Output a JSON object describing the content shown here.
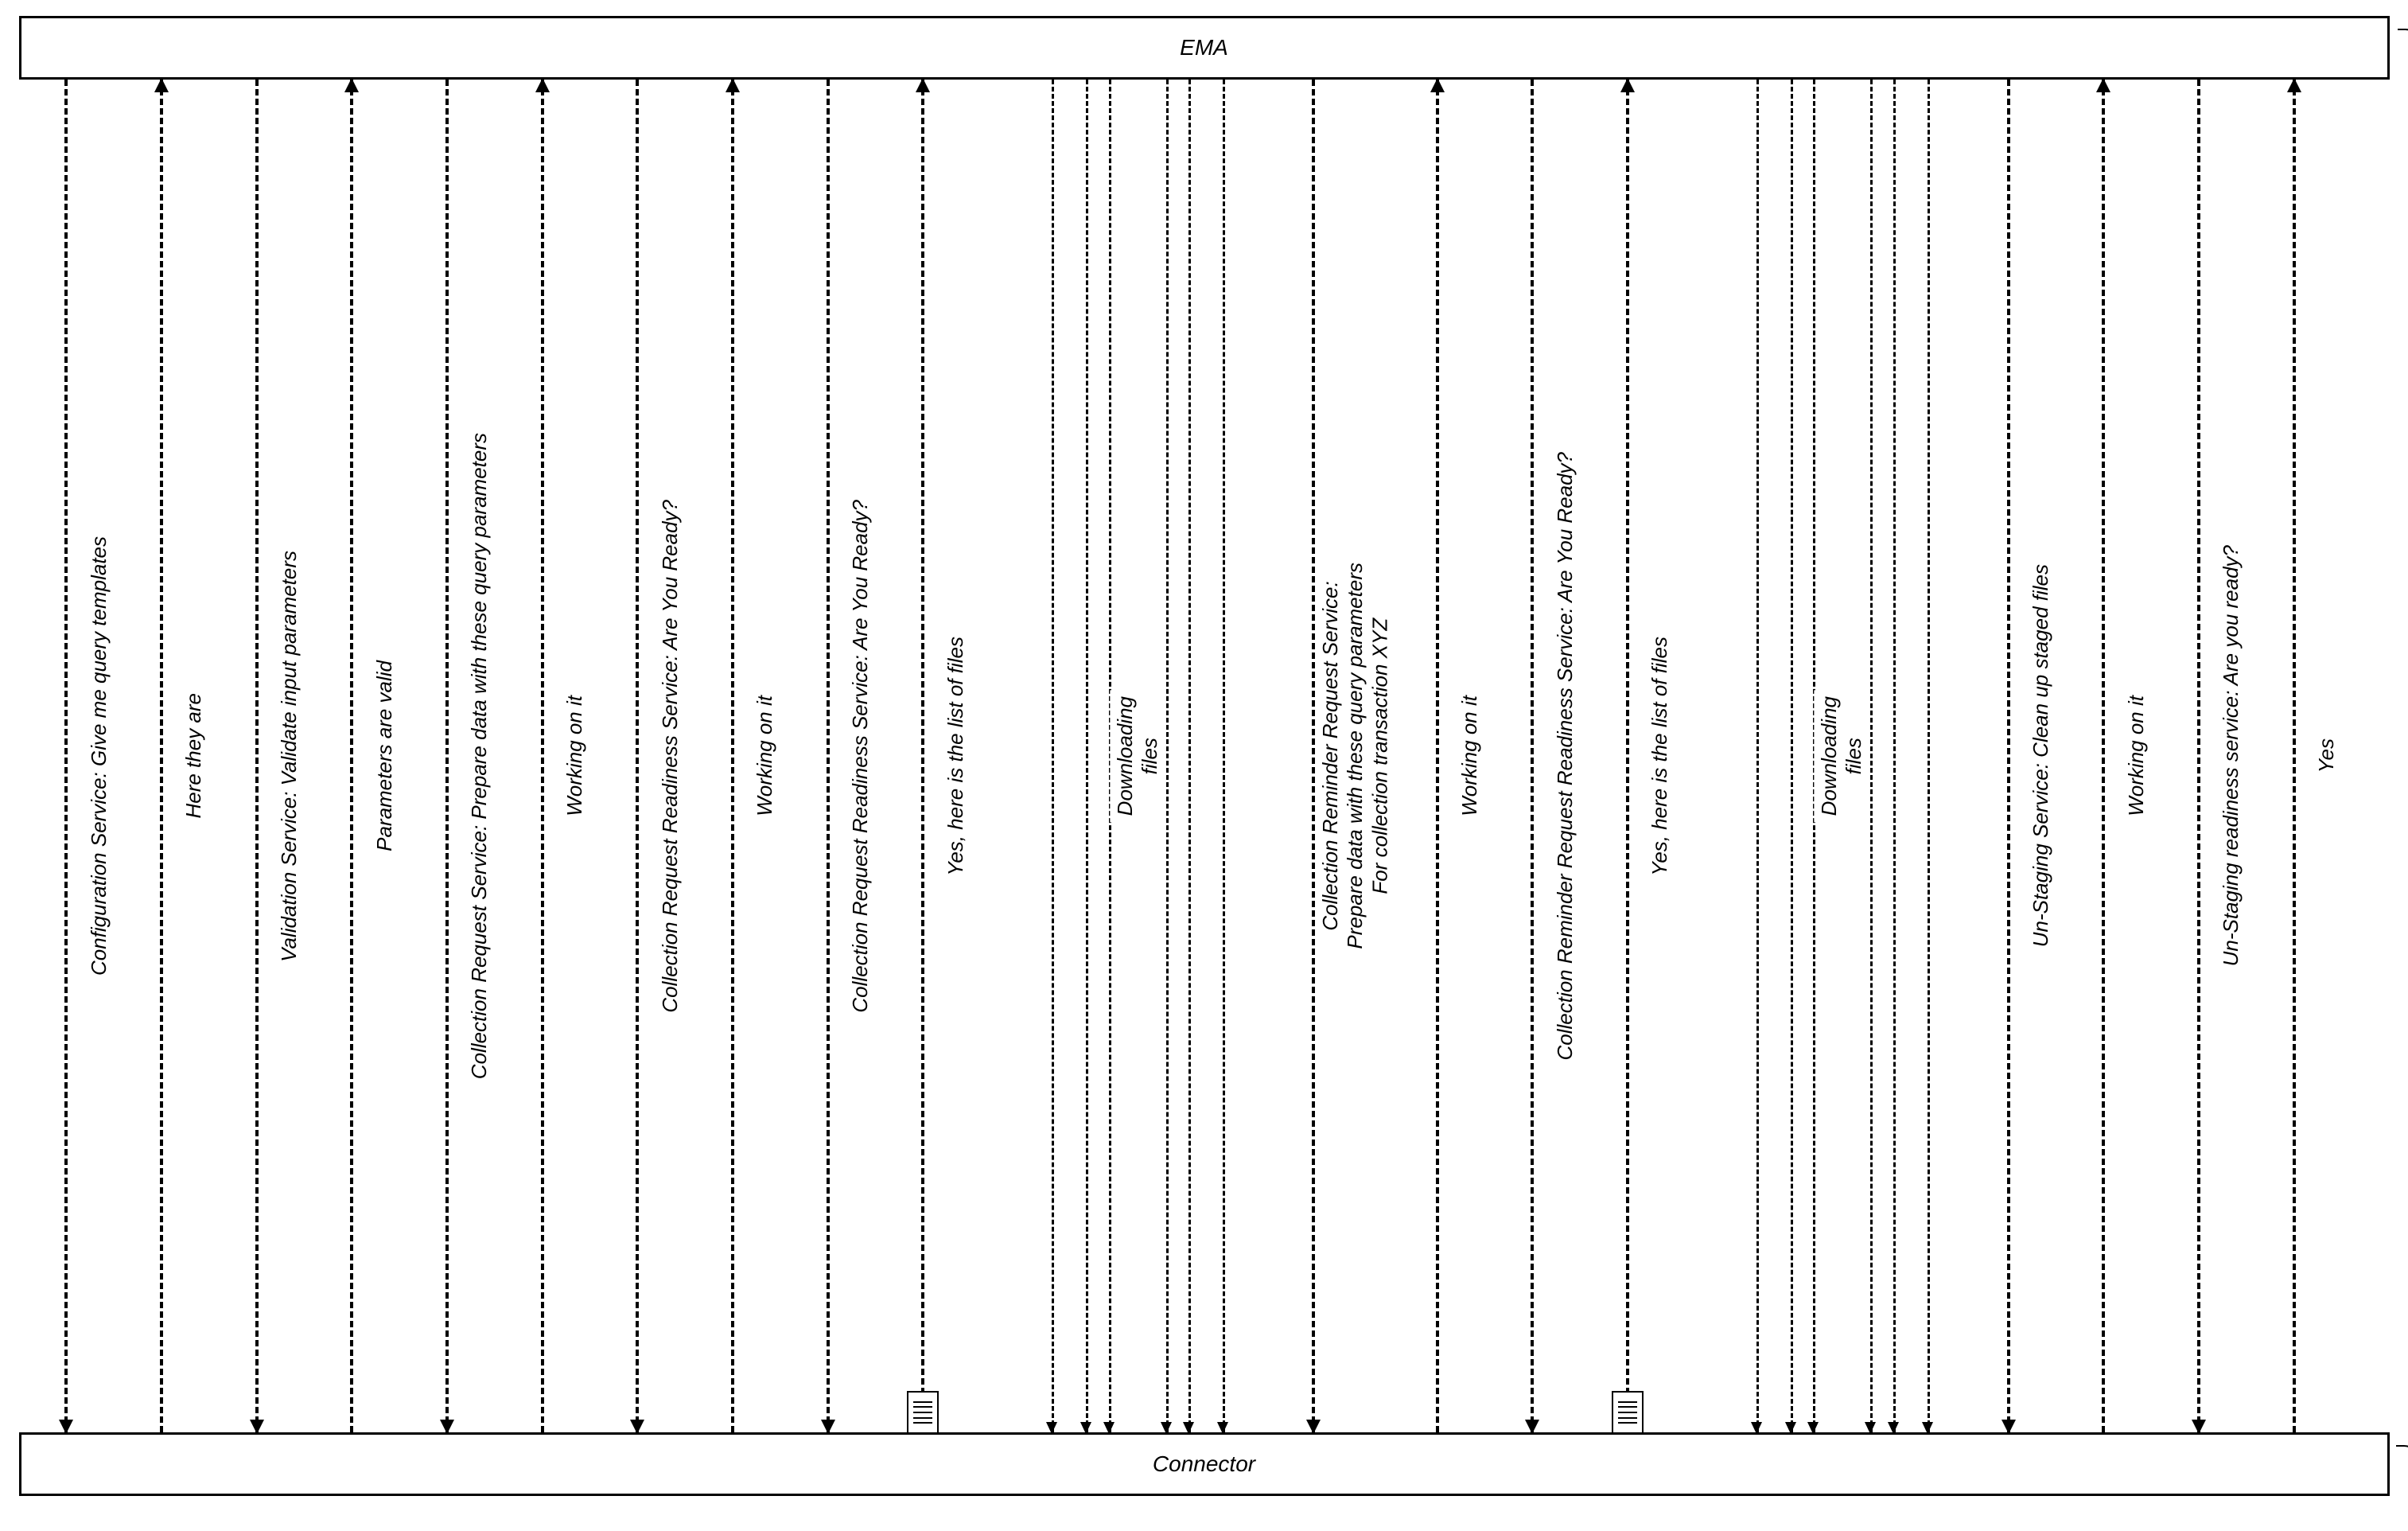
{
  "top_box": {
    "label": "EMA",
    "ref": "11"
  },
  "bottom_box": {
    "label": "Connector",
    "ref": "13"
  },
  "colors": {
    "stroke": "#000000",
    "background": "#ffffff"
  },
  "font": {
    "style": "italic",
    "size_pt": 26
  },
  "messages": [
    {
      "dir": "down",
      "text": "Configuration Service: Give me query templates"
    },
    {
      "dir": "up",
      "text": "Here they are"
    },
    {
      "dir": "down",
      "text": "Validation Service: Validate input parameters"
    },
    {
      "dir": "up",
      "text": "Parameters are valid"
    },
    {
      "dir": "down",
      "text": "Collection Request Service: Prepare data with these query parameters"
    },
    {
      "dir": "up",
      "text": "Working on it"
    },
    {
      "dir": "down",
      "text": "Collection Request Readiness Service: Are You Ready?"
    },
    {
      "dir": "up",
      "text": "Working on it"
    },
    {
      "dir": "down",
      "text": "Collection Request Readiness Service: Are You Ready?"
    },
    {
      "dir": "up",
      "text": "Yes, here is the list of files",
      "with_file_icon": true
    },
    {
      "dir": "download",
      "text": "Downloading\nfiles"
    },
    {
      "dir": "down",
      "text": "Collection Reminder Request Service:\nPrepare data with these query parameters\nFor collection transaction XYZ",
      "multiline": true,
      "wide": true
    },
    {
      "dir": "up",
      "text": "Working on it"
    },
    {
      "dir": "down",
      "text": "Collection Reminder Request Readiness Service: Are You Ready?"
    },
    {
      "dir": "up",
      "text": "Yes, here is the list of files",
      "with_file_icon": true
    },
    {
      "dir": "download",
      "text": "Downloading\nfiles"
    },
    {
      "dir": "down",
      "text": "Un-Staging Service: Clean up staged files"
    },
    {
      "dir": "up",
      "text": "Working on it"
    },
    {
      "dir": "down",
      "text": "Un-Staging readiness service: Are you ready?"
    },
    {
      "dir": "up",
      "text": "Yes"
    }
  ],
  "download_group": {
    "line_count": 6,
    "line_offsets_pct": [
      20,
      32,
      40,
      60,
      68,
      80
    ]
  }
}
